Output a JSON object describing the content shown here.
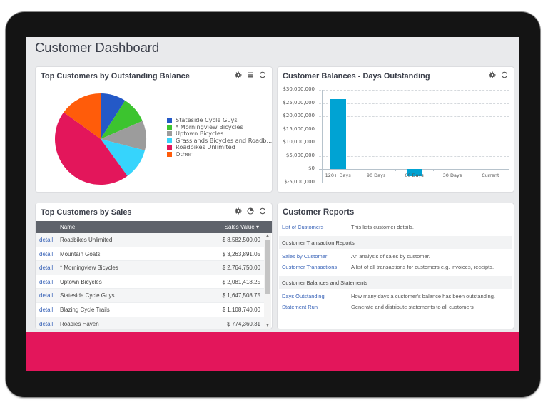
{
  "page": {
    "title": "Customer Dashboard",
    "accent_color": "#e3165b"
  },
  "panels": {
    "outstanding_balance": {
      "title": "Top Customers by Outstanding Balance",
      "icons": [
        "gear-icon",
        "list-icon",
        "refresh-icon"
      ],
      "legend": [
        {
          "label": "Stateside Cycle Guys",
          "color": "#2459c7"
        },
        {
          "label": "* Morningview Bicycles",
          "color": "#3cc42f"
        },
        {
          "label": "Uptown Bicycles",
          "color": "#9c9c9c"
        },
        {
          "label": "Grasslands Bicycles and Roadb...",
          "color": "#36d4fc"
        },
        {
          "label": "Roadbikes Unlimited",
          "color": "#e3165b"
        },
        {
          "label": "Other",
          "color": "#ff5c0a"
        }
      ]
    },
    "days_outstanding": {
      "title": "Customer Balances - Days Outstanding",
      "icons": [
        "gear-icon",
        "refresh-icon"
      ]
    },
    "sales": {
      "title": "Top Customers by Sales",
      "icons": [
        "gear-icon",
        "pie-chart-icon",
        "refresh-icon"
      ],
      "columns": {
        "name": "Name",
        "value": "Sales Value ▾"
      },
      "detail_label": "detail",
      "rows": [
        {
          "name": "Roadbikes Unlimited",
          "value": "$ 8,582,500.00"
        },
        {
          "name": "Mountain Goats",
          "value": "$ 3,263,891.05"
        },
        {
          "name": "* Morningview Bicycles",
          "value": "$ 2,764,750.00"
        },
        {
          "name": "Uptown Bicycles",
          "value": "$ 2,081,418.25"
        },
        {
          "name": "Stateside Cycle Guys",
          "value": "$ 1,647,508.75"
        },
        {
          "name": "Blazing Cycle Trails",
          "value": "$ 1,108,740.00"
        },
        {
          "name": "Roadies Haven",
          "value": "$ 774,360.31"
        }
      ]
    },
    "reports": {
      "title": "Customer Reports",
      "items": [
        {
          "type": "link",
          "label": "List of Customers",
          "desc": "This lists customer details."
        },
        {
          "type": "section",
          "label": "Customer Transaction Reports"
        },
        {
          "type": "link",
          "label": "Sales by Customer",
          "desc": "An analysis of sales by customer."
        },
        {
          "type": "link",
          "label": "Customer Transactions",
          "desc": "A list of all transactions for customers e.g. invoices, receipts."
        },
        {
          "type": "section",
          "label": "Customer Balances and Statements"
        },
        {
          "type": "link",
          "label": "Days Outstanding",
          "desc": "How many days a customer's balance has been outstanding."
        },
        {
          "type": "link",
          "label": "Statement Run",
          "desc": "Generate and distribute statements to all customers"
        }
      ]
    }
  },
  "chart_data": [
    {
      "type": "pie",
      "title": "Top Customers by Outstanding Balance",
      "categories": [
        "Stateside Cycle Guys",
        "* Morningview Bicycles",
        "Uptown Bicycles",
        "Grasslands Bicycles and Roadb...",
        "Roadbikes Unlimited",
        "Other"
      ],
      "values": [
        9,
        9.5,
        10.5,
        11,
        45,
        15
      ],
      "colors": [
        "#2459c7",
        "#3cc42f",
        "#9c9c9c",
        "#36d4fc",
        "#e3165b",
        "#ff5c0a"
      ],
      "legend_position": "right"
    },
    {
      "type": "bar",
      "title": "Customer Balances - Days Outstanding",
      "categories": [
        "120+ Days",
        "90 Days",
        "60 Days",
        "30 Days",
        "Current"
      ],
      "values": [
        26500000,
        0,
        -2500000,
        0,
        0
      ],
      "color": "#00a3d3",
      "xlabel": "",
      "ylabel": "",
      "ylim": [
        -5000000,
        30000000
      ],
      "yticks": [
        "$30,000,000",
        "$25,000,000",
        "$20,000,000",
        "$15,000,000",
        "$10,000,000",
        "$5,000,000",
        "$0",
        "$-5,000,000"
      ],
      "grid": true
    }
  ]
}
